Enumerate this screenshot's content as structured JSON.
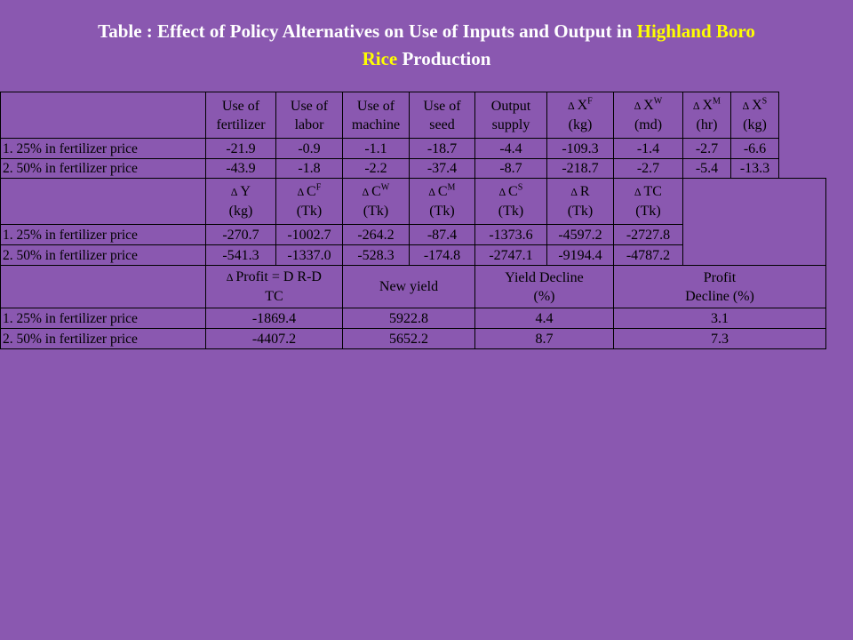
{
  "title": {
    "part1": "Table : Effect of Policy Alternatives on Use of Inputs and Output in ",
    "highlight1": "Highland Boro",
    "highlight2": "Rice",
    "part2": " Production"
  },
  "colors": {
    "background": "#8a58b0",
    "title_text": "#ffffff",
    "title_highlight": "#ffff00"
  },
  "row_labels": [
    "1. 25%  in fertilizer price",
    "2. 50%  in fertilizer price"
  ],
  "section1": {
    "headers": [
      {
        "line1": "Use of",
        "line2": "fertilizer"
      },
      {
        "line1": "Use of",
        "line2": "labor"
      },
      {
        "line1": "Use of",
        "line2": "machine"
      },
      {
        "line1": "Use of",
        "line2": "seed"
      },
      {
        "line1": "Output",
        "line2": "supply"
      }
    ],
    "delta_headers": [
      {
        "var": "X",
        "sub": "F",
        "unit": "(kg)"
      },
      {
        "var": "X",
        "sub": "W",
        "unit": "(md)"
      },
      {
        "var": "X",
        "sub": "M",
        "unit": "(hr)"
      },
      {
        "var": "X",
        "sub": "S",
        "unit": "(kg)"
      }
    ],
    "rows": [
      [
        "-21.9",
        "-0.9",
        "-1.1",
        "-18.7",
        "-4.4",
        "-109.3",
        "-1.4",
        "-2.7",
        "-6.6"
      ],
      [
        "-43.9",
        "-1.8",
        "-2.2",
        "-37.4",
        "-8.7",
        "-218.7",
        "-2.7",
        "-5.4",
        "-13.3"
      ]
    ]
  },
  "section2": {
    "headers": [
      {
        "var": "Y",
        "sub": "",
        "unit": "(kg)"
      },
      {
        "var": "C",
        "sub": "F",
        "unit": "(Tk)"
      },
      {
        "var": "C",
        "sub": "W",
        "unit": "(Tk)"
      },
      {
        "var": "C",
        "sub": "M",
        "unit": "(Tk)"
      },
      {
        "var": "C",
        "sub": "S",
        "unit": "(Tk)"
      },
      {
        "var": "R",
        "sub": "",
        "unit": "(Tk)"
      },
      {
        "var": "TC",
        "sub": "",
        "unit": "(Tk)"
      }
    ],
    "rows": [
      [
        "-270.7",
        "-1002.7",
        "-264.2",
        "-87.4",
        "-1373.6",
        "-4597.2",
        "-2727.8"
      ],
      [
        "-541.3",
        "-1337.0",
        "-528.3",
        "-174.8",
        "-2747.1",
        "-9194.4",
        "-4787.2"
      ]
    ]
  },
  "section3": {
    "headers": {
      "profit_line1": "Profit = D R-D",
      "profit_line2": "TC",
      "new_yield": "New yield",
      "yield_decline_line1": "Yield Decline",
      "yield_decline_line2": "(%)",
      "profit_decline_line1": "Profit",
      "profit_decline_line2": "Decline (%)"
    },
    "rows": [
      [
        "-1869.4",
        "5922.8",
        "4.4",
        "3.1"
      ],
      [
        "-4407.2",
        "5652.2",
        "8.7",
        "7.3"
      ]
    ]
  },
  "symbols": {
    "delta": "∆"
  }
}
